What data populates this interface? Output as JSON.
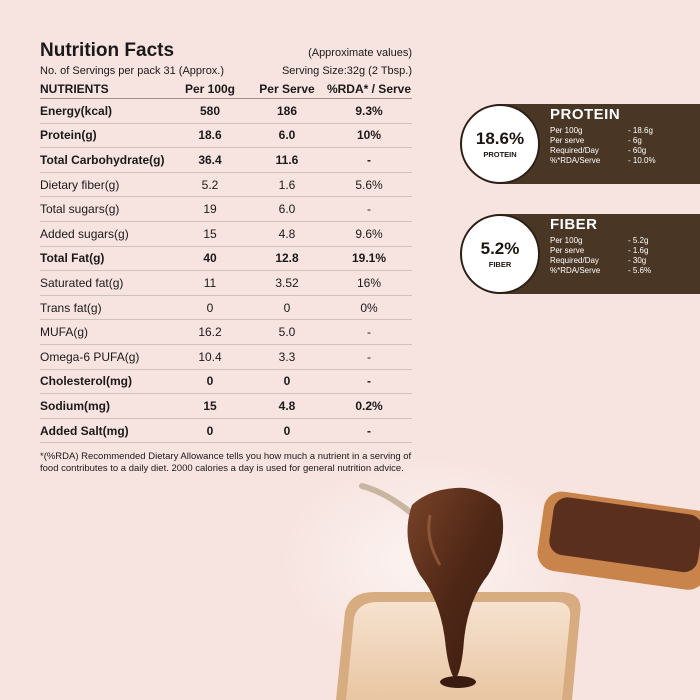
{
  "nutrition": {
    "title": "Nutrition Facts",
    "approx": "(Approximate values)",
    "servings": "No. of Servings per pack 31 (Approx.)",
    "serving_size": "Serving Size:32g (2 Tbsp.)",
    "headers": [
      "NUTRIENTS",
      "Per 100g",
      "Per Serve",
      "%RDA* / Serve"
    ],
    "rows": [
      {
        "name": "Energy(kcal)",
        "per100": "580",
        "serve": "186",
        "rda": "9.3%"
      },
      {
        "name": "Protein(g)",
        "per100": "18.6",
        "serve": "6.0",
        "rda": "10%"
      },
      {
        "name": "Total Carbohydrate(g)",
        "per100": "36.4",
        "serve": "11.6",
        "rda": "-"
      },
      {
        "name": "Dietary fiber(g)",
        "per100": "5.2",
        "serve": "1.6",
        "rda": "5.6%"
      },
      {
        "name": "Total sugars(g)",
        "per100": "19",
        "serve": "6.0",
        "rda": "-"
      },
      {
        "name": "Added sugars(g)",
        "per100": "15",
        "serve": "4.8",
        "rda": "9.6%"
      },
      {
        "name": "Total Fat(g)",
        "per100": "40",
        "serve": "12.8",
        "rda": "19.1%"
      },
      {
        "name": "Saturated fat(g)",
        "per100": "11",
        "serve": "3.52",
        "rda": "16%"
      },
      {
        "name": "Trans fat(g)",
        "per100": "0",
        "serve": "0",
        "rda": "0%"
      },
      {
        "name": "MUFA(g)",
        "per100": "16.2",
        "serve": "5.0",
        "rda": "-"
      },
      {
        "name": "Omega-6 PUFA(g)",
        "per100": "10.4",
        "serve": "3.3",
        "rda": "-"
      },
      {
        "name": "Cholesterol(mg)",
        "per100": "0",
        "serve": "0",
        "rda": "-"
      },
      {
        "name": "Sodium(mg)",
        "per100": "15",
        "serve": "4.8",
        "rda": "0.2%"
      },
      {
        "name": "Added Salt(mg)",
        "per100": "0",
        "serve": "0",
        "rda": "-"
      }
    ],
    "footnote": "*(%RDA) Recommended Dietary Allowance tells you how much a nutrient in a serving of food contributes to a daily diet. 2000 calories a day is used for general nutrition advice."
  },
  "badges": {
    "protein": {
      "pct": "18.6%",
      "circle_label": "PROTEIN",
      "heading": "PROTEIN",
      "rows": [
        {
          "label": "Per 100g",
          "value": "- 18.6g"
        },
        {
          "label": "Per serve",
          "value": "- 6g"
        },
        {
          "label": "Required/Day",
          "value": "- 60g"
        },
        {
          "label": "%*RDA/Serve",
          "value": "- 10.0%"
        }
      ]
    },
    "fiber": {
      "pct": "5.2%",
      "circle_label": "FIBER",
      "heading": "FIBER",
      "rows": [
        {
          "label": "Per 100g",
          "value": "- 5.2g"
        },
        {
          "label": "Per serve",
          "value": "- 1.6g"
        },
        {
          "label": "Required/Day",
          "value": "- 30g"
        },
        {
          "label": "%*RDA/Serve",
          "value": "- 5.6%"
        }
      ]
    }
  },
  "colors": {
    "background": "#f7e3df",
    "badge_band": "#4a3625",
    "chocolate": "#5a2f1a",
    "bread": "#f1d4b8"
  }
}
